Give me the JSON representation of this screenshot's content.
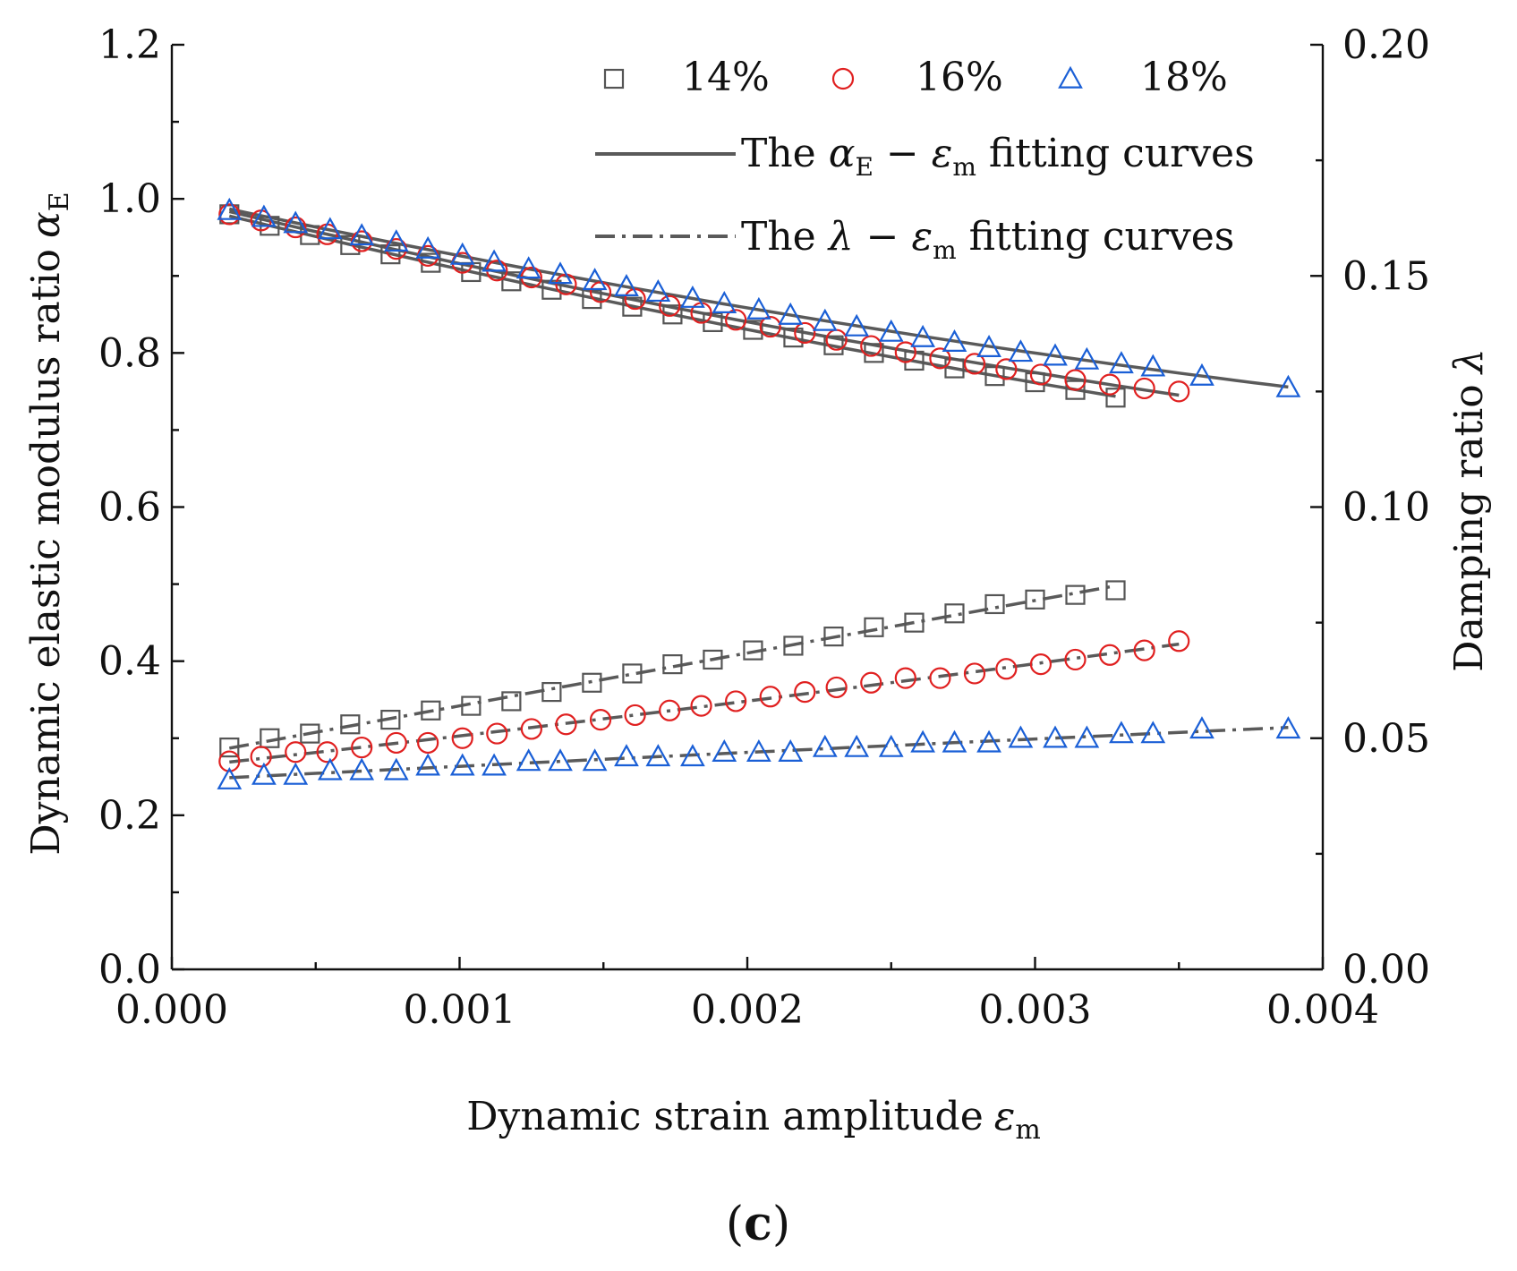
{
  "chart_data": {
    "type": "scatter",
    "panel_label": {
      "open": "(",
      "letter": "c",
      "close": ")"
    },
    "x_axis": {
      "title": "Dynamic strain amplitude",
      "title_symbol": "ε",
      "title_sub": "m",
      "range": [
        0.0,
        0.004
      ],
      "ticks": [
        "0.000",
        "0.001",
        "0.002",
        "0.003",
        "0.004"
      ]
    },
    "y_axis_left": {
      "title": "Dynamic elastic modulus ratio",
      "title_symbol": "α",
      "title_sub": "E",
      "range": [
        0.0,
        1.2
      ],
      "ticks": [
        "0.0",
        "0.2",
        "0.4",
        "0.6",
        "0.8",
        "1.0",
        "1.2"
      ]
    },
    "y_axis_right": {
      "title": "Damping ratio",
      "title_symbol": "λ",
      "range": [
        0.0,
        0.2
      ],
      "ticks": [
        "0.00",
        "0.05",
        "0.10",
        "0.15",
        "0.20"
      ]
    },
    "legend": {
      "placement": "top-right",
      "markers": [
        {
          "label": "14%",
          "marker": "square",
          "color": "#555555"
        },
        {
          "label": "16%",
          "marker": "circle",
          "color": "#e02020"
        },
        {
          "label": "18%",
          "marker": "triangle",
          "color": "#1a5fd6"
        }
      ],
      "lines": [
        {
          "prefix": "The ",
          "sym": "α",
          "sub": "E",
          "dash": " − ",
          "sym2": "ε",
          "sub2": "m",
          "suffix": "  fitting curves",
          "style": "solid"
        },
        {
          "prefix": "The ",
          "sym": "λ",
          "dash": " − ",
          "sym2": "ε",
          "sub2": "m",
          "suffix": " fitting curves",
          "style": "dash-dot"
        }
      ]
    },
    "fit_line_color": "#5a5a5a",
    "series": [
      {
        "name": "14%",
        "marker": "square",
        "color": "#555555",
        "x": [
          0.0002,
          0.00034,
          0.00048,
          0.00062,
          0.00076,
          0.0009,
          0.00104,
          0.00118,
          0.00132,
          0.00146,
          0.0016,
          0.00174,
          0.00188,
          0.00202,
          0.00216,
          0.0023,
          0.00244,
          0.00258,
          0.00272,
          0.00286,
          0.003,
          0.00314,
          0.00328
        ],
        "alpha": [
          0.98,
          0.965,
          0.953,
          0.94,
          0.928,
          0.917,
          0.905,
          0.893,
          0.882,
          0.87,
          0.86,
          0.85,
          0.84,
          0.83,
          0.82,
          0.81,
          0.8,
          0.79,
          0.78,
          0.77,
          0.762,
          0.752,
          0.742
        ],
        "lambda": [
          0.048,
          0.05,
          0.051,
          0.053,
          0.054,
          0.056,
          0.057,
          0.058,
          0.06,
          0.062,
          0.064,
          0.066,
          0.067,
          0.069,
          0.07,
          0.072,
          0.074,
          0.075,
          0.077,
          0.079,
          0.08,
          0.081,
          0.082
        ]
      },
      {
        "name": "16%",
        "marker": "circle",
        "color": "#e02020",
        "x": [
          0.0002,
          0.00031,
          0.00043,
          0.00054,
          0.00066,
          0.00078,
          0.00089,
          0.00101,
          0.00113,
          0.00125,
          0.00137,
          0.00149,
          0.00161,
          0.00173,
          0.00184,
          0.00196,
          0.00208,
          0.0022,
          0.00231,
          0.00243,
          0.00255,
          0.00267,
          0.00279,
          0.0029,
          0.00302,
          0.00314,
          0.00326,
          0.00338,
          0.0035
        ],
        "alpha": [
          0.98,
          0.972,
          0.963,
          0.954,
          0.945,
          0.935,
          0.926,
          0.917,
          0.907,
          0.898,
          0.889,
          0.879,
          0.87,
          0.861,
          0.852,
          0.843,
          0.834,
          0.826,
          0.817,
          0.809,
          0.801,
          0.793,
          0.786,
          0.779,
          0.772,
          0.765,
          0.759,
          0.754,
          0.75
        ],
        "lambda": [
          0.045,
          0.046,
          0.047,
          0.047,
          0.048,
          0.049,
          0.049,
          0.05,
          0.051,
          0.052,
          0.053,
          0.054,
          0.055,
          0.056,
          0.057,
          0.058,
          0.059,
          0.06,
          0.061,
          0.062,
          0.063,
          0.063,
          0.064,
          0.065,
          0.066,
          0.067,
          0.068,
          0.069,
          0.071
        ]
      },
      {
        "name": "18%",
        "marker": "triangle",
        "color": "#1a5fd6",
        "x": [
          0.0002,
          0.00032,
          0.00043,
          0.00055,
          0.00066,
          0.00078,
          0.00089,
          0.00101,
          0.00112,
          0.00124,
          0.00135,
          0.00147,
          0.00158,
          0.00169,
          0.00181,
          0.00192,
          0.00204,
          0.00215,
          0.00227,
          0.00238,
          0.0025,
          0.00261,
          0.00272,
          0.00284,
          0.00295,
          0.00307,
          0.00318,
          0.0033,
          0.00341,
          0.00358,
          0.00388
        ],
        "alpha": [
          0.985,
          0.976,
          0.968,
          0.96,
          0.952,
          0.944,
          0.935,
          0.927,
          0.918,
          0.909,
          0.902,
          0.894,
          0.886,
          0.879,
          0.871,
          0.864,
          0.856,
          0.849,
          0.841,
          0.834,
          0.827,
          0.82,
          0.814,
          0.807,
          0.801,
          0.796,
          0.791,
          0.786,
          0.782,
          0.77,
          0.755
        ],
        "lambda": [
          0.041,
          0.042,
          0.042,
          0.043,
          0.043,
          0.043,
          0.044,
          0.044,
          0.044,
          0.045,
          0.045,
          0.045,
          0.046,
          0.046,
          0.046,
          0.047,
          0.047,
          0.047,
          0.048,
          0.048,
          0.048,
          0.049,
          0.049,
          0.049,
          0.05,
          0.05,
          0.05,
          0.051,
          0.051,
          0.052,
          0.052
        ]
      }
    ]
  }
}
